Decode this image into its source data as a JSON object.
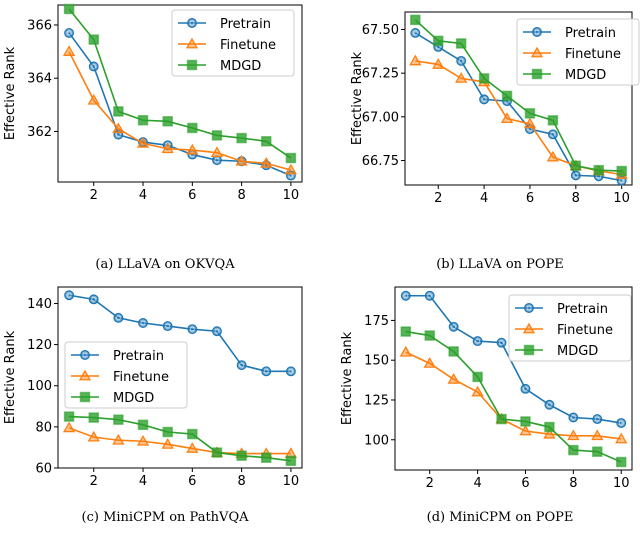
{
  "colors": {
    "Pretrain": "#1f77b4",
    "Finetune": "#ff7f0e",
    "MDGD": "#2ca02c"
  },
  "markers": {
    "Pretrain": "circle",
    "Finetune": "triangle",
    "MDGD": "square"
  },
  "chart_data": [
    {
      "type": "line",
      "caption": "(a)  LLaVA on OKVQA",
      "ylabel": "Effective Rank",
      "x": [
        1,
        2,
        3,
        4,
        5,
        6,
        7,
        8,
        9,
        10
      ],
      "xticks": [
        2,
        4,
        6,
        8,
        10
      ],
      "yticks": [
        362,
        364,
        366
      ],
      "ylim": [
        360.1,
        366.75
      ],
      "legend": "top-right",
      "grid": false,
      "series": [
        {
          "name": "Pretrain",
          "values": [
            365.7,
            364.44,
            361.88,
            361.6,
            361.48,
            361.13,
            360.92,
            360.88,
            360.73,
            360.34
          ]
        },
        {
          "name": "Finetune",
          "values": [
            365.0,
            363.17,
            362.1,
            361.55,
            361.35,
            361.3,
            361.2,
            360.88,
            360.8,
            360.55
          ]
        },
        {
          "name": "MDGD",
          "values": [
            366.6,
            365.45,
            362.75,
            362.42,
            362.38,
            362.13,
            361.85,
            361.75,
            361.63,
            361.0
          ]
        }
      ]
    },
    {
      "type": "line",
      "caption": "(b)  LLaVA on POPE",
      "ylabel": "Effective Rank",
      "x": [
        1,
        2,
        3,
        4,
        5,
        6,
        7,
        8,
        9,
        10
      ],
      "xticks": [
        2,
        4,
        6,
        8,
        10
      ],
      "yticks": [
        "66.75",
        "67.00",
        "67.25",
        "67.50"
      ],
      "ylim": [
        66.61,
        67.6
      ],
      "legend": "top-right",
      "grid": false,
      "series": [
        {
          "name": "Pretrain",
          "values": [
            67.48,
            67.4,
            67.32,
            67.1,
            67.09,
            66.93,
            66.9,
            66.665,
            66.66,
            66.635
          ]
        },
        {
          "name": "Finetune",
          "values": [
            67.32,
            67.3,
            67.22,
            67.2,
            66.99,
            66.96,
            66.77,
            66.72,
            66.69,
            66.67
          ]
        },
        {
          "name": "MDGD",
          "values": [
            67.555,
            67.435,
            67.42,
            67.22,
            67.12,
            67.02,
            66.98,
            66.72,
            66.695,
            66.69
          ]
        }
      ]
    },
    {
      "type": "line",
      "caption": "(c)  MiniCPM on PathVQA",
      "ylabel": "Effective Rank",
      "x": [
        1,
        2,
        3,
        4,
        5,
        6,
        7,
        8,
        9,
        10
      ],
      "xticks": [
        2,
        4,
        6,
        8,
        10
      ],
      "yticks": [
        60,
        80,
        100,
        120,
        140
      ],
      "ylim": [
        60,
        148
      ],
      "legend": "center-left",
      "grid": false,
      "series": [
        {
          "name": "Pretrain",
          "values": [
            144,
            142,
            133,
            130.5,
            129,
            127.5,
            126.5,
            110,
            107,
            107
          ]
        },
        {
          "name": "Finetune",
          "values": [
            79.5,
            75,
            73.5,
            73,
            71.5,
            69.5,
            67.5,
            67,
            67,
            67
          ]
        },
        {
          "name": "MDGD",
          "values": [
            85,
            84.5,
            83.5,
            81,
            77.5,
            76.5,
            67.5,
            66,
            65,
            63.5
          ]
        }
      ]
    },
    {
      "type": "line",
      "caption": "(d)  MiniCPM on POPE",
      "ylabel": "Effective Rank",
      "x": [
        1,
        2,
        3,
        4,
        5,
        6,
        7,
        8,
        9,
        10
      ],
      "xticks": [
        2,
        4,
        6,
        8,
        10
      ],
      "yticks": [
        100,
        125,
        150,
        175
      ],
      "ylim": [
        81,
        196
      ],
      "legend": "top-right",
      "grid": false,
      "series": [
        {
          "name": "Pretrain",
          "values": [
            190.5,
            190.5,
            171,
            162,
            161,
            132,
            122,
            114,
            113,
            110.5
          ]
        },
        {
          "name": "Finetune",
          "values": [
            155,
            148,
            138,
            130,
            113,
            105.5,
            103.5,
            102.5,
            102.5,
            100.5
          ]
        },
        {
          "name": "MDGD",
          "values": [
            168,
            165.5,
            155.5,
            139.5,
            113,
            111.5,
            108,
            93.5,
            92.5,
            86
          ]
        }
      ]
    }
  ]
}
